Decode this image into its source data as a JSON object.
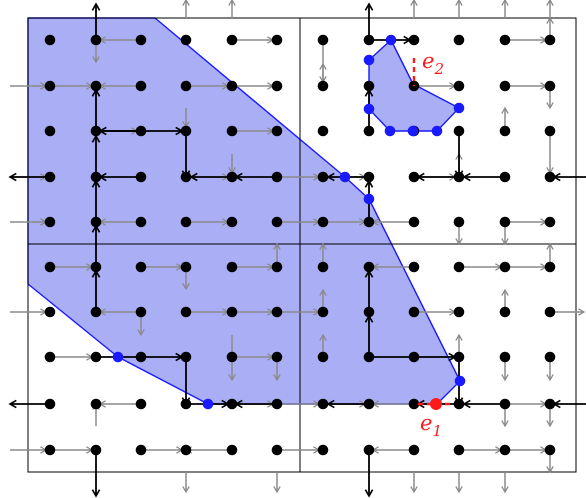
{
  "colors": {
    "region_fill": "#a9aef5",
    "region_stroke": "#1a1aff",
    "vertex": "#1a1aff",
    "gray_arrow": "#8a8a8a",
    "black_arrow": "#000000",
    "red_mark": "#ff1a1a",
    "dot": "#000000"
  },
  "labels": {
    "e1": {
      "base": "e",
      "sub": "1"
    },
    "e2": {
      "base": "e",
      "sub": "2"
    }
  }
}
